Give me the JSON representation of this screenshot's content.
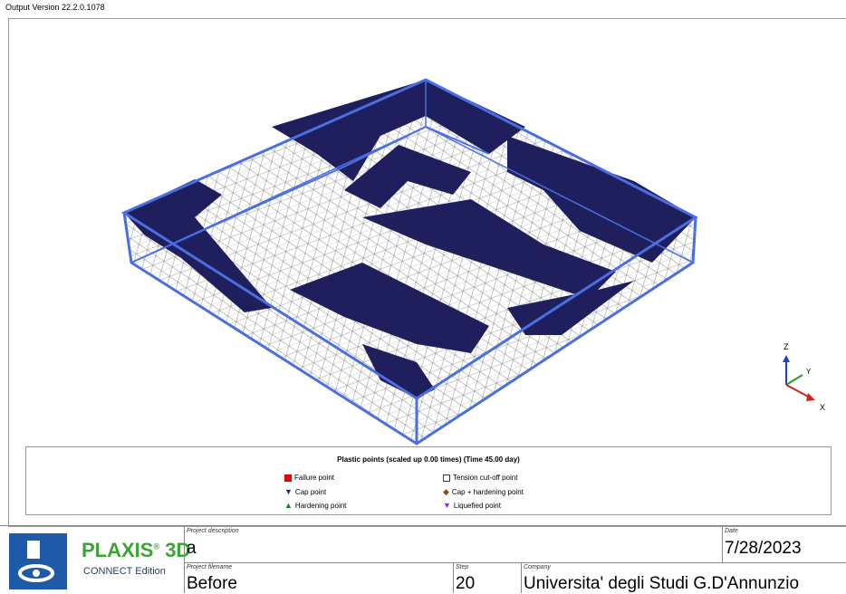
{
  "header": {
    "version": "Output Version 22.2.0.1078"
  },
  "axes": {
    "z": "Z",
    "y": "Y",
    "x": "X"
  },
  "legend": {
    "title": "Plastic points (scaled up 0.00 times) (Time 45.00 day)",
    "items": [
      "Failure point",
      "Tension cut-off point",
      "Cap point",
      "Cap + hardening point",
      "Hardening point",
      "Liquefied point"
    ]
  },
  "footer": {
    "logo": {
      "brand": "PLAXIS",
      "registered": "®",
      "product": "3D",
      "edition": "CONNECT Edition"
    },
    "project_description": {
      "label": "Project description",
      "value": "a"
    },
    "date": {
      "label": "Date",
      "value": "7/28/2023"
    },
    "project_filename": {
      "label": "Project filename",
      "value": "Before"
    },
    "step": {
      "label": "Step",
      "value": "20"
    },
    "company": {
      "label": "Company",
      "value": "Universita' degli Studi G.D'Annunzio"
    }
  }
}
